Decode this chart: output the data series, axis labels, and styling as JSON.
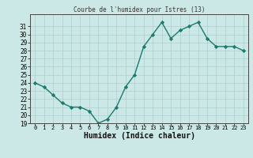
{
  "x": [
    0,
    1,
    2,
    3,
    4,
    5,
    6,
    7,
    8,
    9,
    10,
    11,
    12,
    13,
    14,
    15,
    16,
    17,
    18,
    19,
    20,
    21,
    22,
    23
  ],
  "y": [
    24,
    23.5,
    22.5,
    21.5,
    21,
    21,
    20.5,
    19,
    19.5,
    21,
    23.5,
    25,
    28.5,
    30,
    31.5,
    29.5,
    30.5,
    31,
    31.5,
    29.5,
    28.5,
    28.5,
    28.5,
    28
  ],
  "title": "Courbe de l'humidex pour Istres (13)",
  "xlabel": "Humidex (Indice chaleur)",
  "ylabel": "",
  "ylim": [
    19,
    32
  ],
  "xlim": [
    -0.5,
    23.5
  ],
  "yticks": [
    19,
    20,
    21,
    22,
    23,
    24,
    25,
    26,
    27,
    28,
    29,
    30,
    31
  ],
  "xticks": [
    0,
    1,
    2,
    3,
    4,
    5,
    6,
    7,
    8,
    9,
    10,
    11,
    12,
    13,
    14,
    15,
    16,
    17,
    18,
    19,
    20,
    21,
    22,
    23
  ],
  "line_color": "#1a7a6e",
  "bg_color": "#cce8e6",
  "grid_color": "#aacfcd",
  "grid_minor_color": "#c0dedd",
  "title_color": "#333333",
  "marker": "D",
  "marker_size": 2.2,
  "line_width": 1.0
}
